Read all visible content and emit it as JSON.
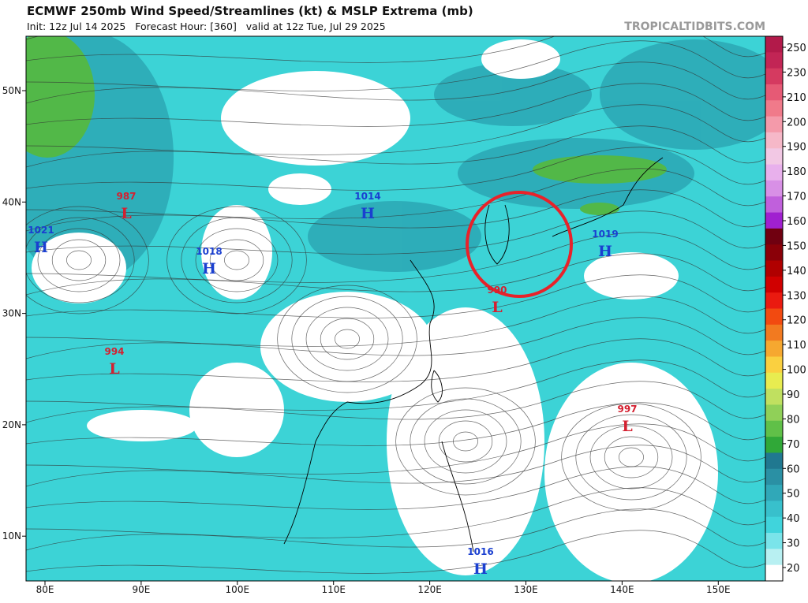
{
  "header": {
    "title": "ECMWF 250mb Wind Speed/Streamlines (kt) & MSLP Extrema (mb)",
    "subtitle": "Init: 12z Jul 14 2025   Forecast Hour: [360]   valid at 12z Tue, Jul 29 2025",
    "credit": "TROPICALTIDBITS.COM"
  },
  "latitude_labels": [
    "50N",
    "40N",
    "30N",
    "20N",
    "10N"
  ],
  "longitude_labels": [
    "80E",
    "90E",
    "100E",
    "110E",
    "120E",
    "130E",
    "140E",
    "150E"
  ],
  "pressure_centers": [
    {
      "type": "L",
      "value": "987"
    },
    {
      "type": "H",
      "value": "1021"
    },
    {
      "type": "H",
      "value": "1018"
    },
    {
      "type": "H",
      "value": "1014"
    },
    {
      "type": "L",
      "value": "994"
    },
    {
      "type": "L",
      "value": "990"
    },
    {
      "type": "H",
      "value": "1019"
    },
    {
      "type": "L",
      "value": "997"
    },
    {
      "type": "H",
      "value": "1016"
    }
  ],
  "colorbar": {
    "labels": [
      250,
      230,
      210,
      200,
      190,
      180,
      170,
      160,
      150,
      140,
      130,
      120,
      110,
      100,
      90,
      80,
      70,
      60,
      50,
      40,
      30,
      20
    ]
  }
}
